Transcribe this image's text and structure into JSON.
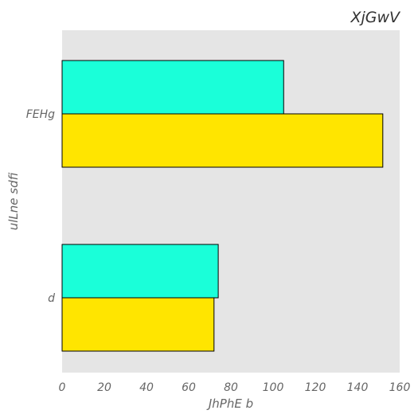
{
  "chart_data": {
    "type": "bar",
    "orientation": "horizontal",
    "title": "XjGwV",
    "xlabel": "JhPhE b",
    "ylabel": "ulLne sdfi",
    "categories": [
      "FEHg",
      "d"
    ],
    "series": [
      {
        "values": [
          105,
          74
        ],
        "color": "#1affd9"
      },
      {
        "values": [
          152,
          72
        ],
        "color": "#ffe500"
      }
    ],
    "xlim": [
      0,
      160
    ],
    "xticks": [
      "0",
      "20",
      "40",
      "60",
      "80",
      "100",
      "120",
      "140",
      "160"
    ],
    "grid": false,
    "background": "#e5e5e5",
    "bar_edge_color": "#000000"
  }
}
